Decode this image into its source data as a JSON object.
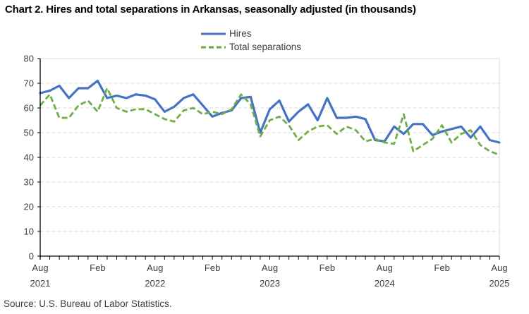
{
  "title": "Chart 2. Hires and total separations in Arkansas, seasonally adjusted (in thousands)",
  "source": "Source: U.S. Bureau of Labor Statistics.",
  "legend": {
    "hires_label": "Hires",
    "separations_label": "Total separations"
  },
  "colors": {
    "hires": "#4472C4",
    "separations": "#70AD47",
    "grid": "#D9D9D9",
    "axis": "#000000",
    "text": "#404040"
  },
  "chart_data": {
    "type": "line",
    "title": "Chart 2. Hires and total separations in Arkansas, seasonally adjusted (in thousands)",
    "xlabel": "",
    "ylabel": "",
    "ylim": [
      0,
      80
    ],
    "ytick_step": 10,
    "ytick_labels": [
      "0",
      "10",
      "20",
      "30",
      "40",
      "50",
      "60",
      "70",
      "80"
    ],
    "grid": "dashed-horizontal",
    "legend_position": "top-center",
    "x_months_count": 49,
    "x_range_note": "monthly from Aug 2021 to Aug 2025",
    "x_major_ticks": [
      {
        "index": 0,
        "label": "Aug",
        "year": "2021"
      },
      {
        "index": 6,
        "label": "Feb",
        "year": ""
      },
      {
        "index": 12,
        "label": "Aug",
        "year": "2022"
      },
      {
        "index": 18,
        "label": "Feb",
        "year": ""
      },
      {
        "index": 24,
        "label": "Aug",
        "year": "2023"
      },
      {
        "index": 30,
        "label": "Feb",
        "year": ""
      },
      {
        "index": 36,
        "label": "Aug",
        "year": "2024"
      },
      {
        "index": 42,
        "label": "Feb",
        "year": ""
      },
      {
        "index": 48,
        "label": "Aug",
        "year": "2025"
      }
    ],
    "series": [
      {
        "name": "Hires",
        "style": "solid",
        "color": "#4472C4",
        "values": [
          66,
          67,
          69,
          64,
          68,
          68,
          71,
          64,
          65,
          64,
          65.5,
          65,
          63.5,
          58.5,
          60.5,
          64,
          65.5,
          61,
          56.5,
          58,
          59,
          64,
          64.5,
          50,
          59.5,
          63,
          54.5,
          58.5,
          61.5,
          55,
          64,
          56,
          56,
          56.5,
          55.5,
          47,
          46.5,
          52.5,
          49.5,
          53.5,
          53.5,
          49,
          50.5,
          51.5,
          52.5,
          48,
          52.5,
          47,
          46
        ]
      },
      {
        "name": "Total separations",
        "style": "dashed",
        "color": "#70AD47",
        "values": [
          61,
          65.5,
          56,
          56,
          61,
          63,
          58.5,
          68,
          60,
          58.5,
          59.5,
          59.5,
          57.5,
          55.5,
          54.5,
          59,
          60,
          57.5,
          58.5,
          57.5,
          59.5,
          65.5,
          61.5,
          48.5,
          55,
          56.5,
          53,
          47,
          50.5,
          52.5,
          53,
          49.5,
          52.5,
          51,
          46.5,
          47.5,
          46,
          45.5,
          57.5,
          42.5,
          45,
          47.5,
          53,
          46,
          49.5,
          51,
          45,
          42.5,
          41
        ]
      }
    ]
  }
}
